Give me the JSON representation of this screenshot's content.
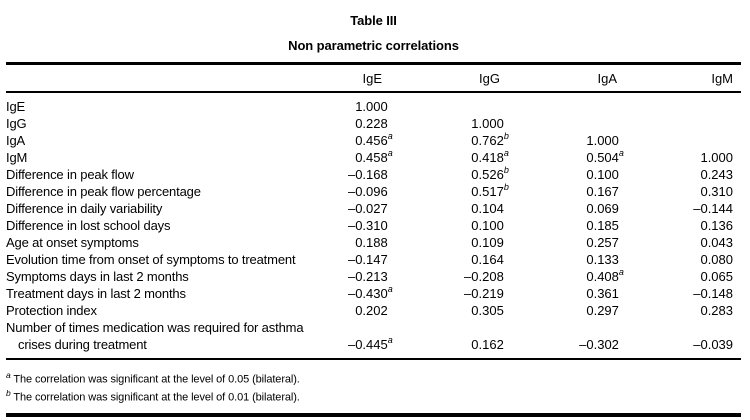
{
  "page": {
    "background_color": "#ffffff",
    "text_color": "#000000"
  },
  "table": {
    "title": "Table III",
    "subtitle": "Non parametric correlations",
    "columns": [
      "IgE",
      "IgG",
      "IgA",
      "IgM"
    ],
    "rows": [
      {
        "label": "IgE",
        "cells": [
          {
            "v": "1.000"
          },
          {
            "v": ""
          },
          {
            "v": ""
          },
          {
            "v": ""
          }
        ]
      },
      {
        "label": "IgG",
        "cells": [
          {
            "v": "0.228"
          },
          {
            "v": "1.000"
          },
          {
            "v": ""
          },
          {
            "v": ""
          }
        ]
      },
      {
        "label": "IgA",
        "cells": [
          {
            "v": "0.456",
            "sup": "a"
          },
          {
            "v": "0.762",
            "sup": "b"
          },
          {
            "v": "1.000"
          },
          {
            "v": ""
          }
        ]
      },
      {
        "label": "IgM",
        "cells": [
          {
            "v": "0.458",
            "sup": "a"
          },
          {
            "v": "0.418",
            "sup": "a"
          },
          {
            "v": "0.504",
            "sup": "a"
          },
          {
            "v": "1.000"
          }
        ]
      },
      {
        "label": "Difference in peak flow",
        "cells": [
          {
            "v": "–0.168"
          },
          {
            "v": "0.526",
            "sup": "b"
          },
          {
            "v": "0.100"
          },
          {
            "v": "0.243"
          }
        ]
      },
      {
        "label": "Difference in peak flow percentage",
        "cells": [
          {
            "v": "–0.096"
          },
          {
            "v": "0.517",
            "sup": "b"
          },
          {
            "v": "0.167"
          },
          {
            "v": "0.310"
          }
        ]
      },
      {
        "label": "Difference in daily variability",
        "cells": [
          {
            "v": "–0.027"
          },
          {
            "v": "0.104"
          },
          {
            "v": "0.069"
          },
          {
            "v": "–0.144"
          }
        ]
      },
      {
        "label": "Difference in lost school days",
        "cells": [
          {
            "v": "–0.310"
          },
          {
            "v": "0.100"
          },
          {
            "v": "0.185"
          },
          {
            "v": "0.136"
          }
        ]
      },
      {
        "label": "Age at onset symptoms",
        "cells": [
          {
            "v": "0.188"
          },
          {
            "v": "0.109"
          },
          {
            "v": "0.257"
          },
          {
            "v": "0.043"
          }
        ]
      },
      {
        "label": "Evolution time from onset of symptoms to treatment",
        "cells": [
          {
            "v": "–0.147"
          },
          {
            "v": "0.164"
          },
          {
            "v": "0.133"
          },
          {
            "v": "0.080"
          }
        ]
      },
      {
        "label": "Symptoms days in last 2 months",
        "cells": [
          {
            "v": "–0.213"
          },
          {
            "v": "–0.208"
          },
          {
            "v": "0.408",
            "sup": "a"
          },
          {
            "v": "0.065"
          }
        ]
      },
      {
        "label": "Treatment days in last 2 months",
        "cells": [
          {
            "v": "–0.430",
            "sup": "a"
          },
          {
            "v": "–0.219"
          },
          {
            "v": "0.361"
          },
          {
            "v": "–0.148"
          }
        ]
      },
      {
        "label": "Protection index",
        "cells": [
          {
            "v": "0.202"
          },
          {
            "v": "0.305"
          },
          {
            "v": "0.297"
          },
          {
            "v": "0.283"
          }
        ]
      },
      {
        "label": "Number of times medication was required for asthma crises during treatment",
        "cells": [
          {
            "v": "–0.445",
            "sup": "a"
          },
          {
            "v": "0.162"
          },
          {
            "v": "–0.302"
          },
          {
            "v": "–0.039"
          }
        ]
      }
    ],
    "footnotes": [
      {
        "marker": "a",
        "text": "The correlation was significant at the level of 0.05 (bilateral)."
      },
      {
        "marker": "b",
        "text": "The correlation was significant at the level of 0.01 (bilateral)."
      }
    ]
  }
}
